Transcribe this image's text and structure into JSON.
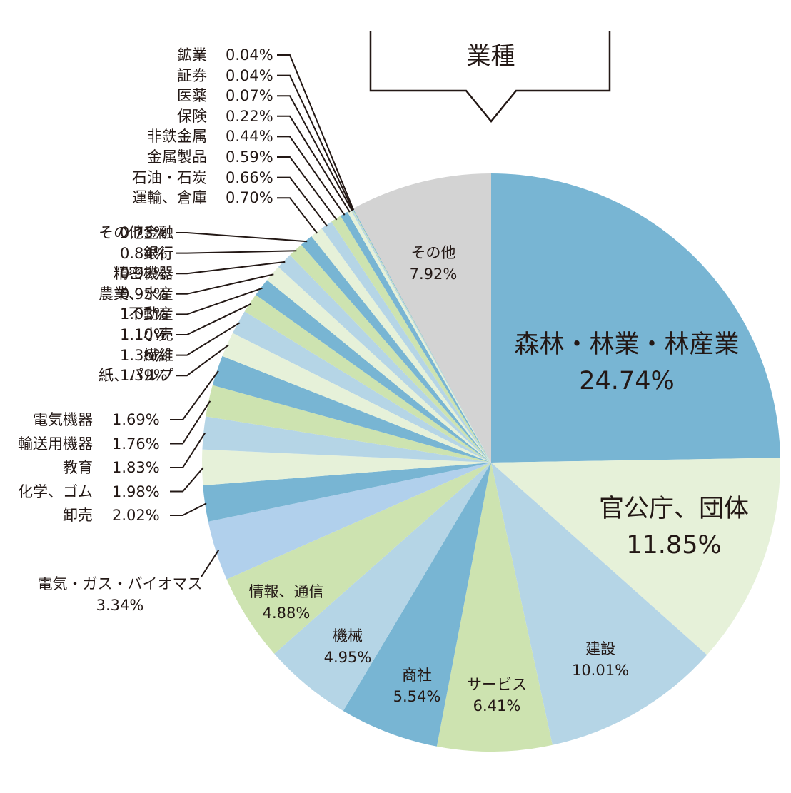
{
  "title": "業種",
  "chart_data": {
    "type": "pie",
    "title": "業種",
    "start_angle_deg": 0,
    "direction": "clockwise",
    "unit": "%",
    "slices": [
      {
        "label": "森林・林業・林産業",
        "value": 24.74,
        "value_text": "24.74%",
        "color": "#78b5d3"
      },
      {
        "label": "官公庁、団体",
        "value": 11.85,
        "value_text": "11.85%",
        "color": "#e6f1d9"
      },
      {
        "label": "建設",
        "value": 10.01,
        "value_text": "10.01%",
        "color": "#b5d5e6"
      },
      {
        "label": "サービス",
        "value": 6.41,
        "value_text": "6.41%",
        "color": "#cde3b0"
      },
      {
        "label": "商社",
        "value": 5.54,
        "value_text": "5.54%",
        "color": "#78b5d3"
      },
      {
        "label": "機械",
        "value": 4.95,
        "value_text": "4.95%",
        "color": "#b5d5e6"
      },
      {
        "label": "情報、通信",
        "value": 4.88,
        "value_text": "4.88%",
        "color": "#cde3b0"
      },
      {
        "label": "電気・ガス・バイオマス",
        "value": 3.34,
        "value_text": "3.34%",
        "color": "#b1d0ec"
      },
      {
        "label": "卸売",
        "value": 2.02,
        "value_text": "2.02%",
        "color": "#78b5d3"
      },
      {
        "label": "化学、ゴム",
        "value": 1.98,
        "value_text": "1.98%",
        "color": "#e6f1d9"
      },
      {
        "label": "教育",
        "value": 1.83,
        "value_text": "1.83%",
        "color": "#b5d5e6"
      },
      {
        "label": "輸送用機器",
        "value": 1.76,
        "value_text": "1.76%",
        "color": "#cde3b0"
      },
      {
        "label": "電気機器",
        "value": 1.69,
        "value_text": "1.69%",
        "color": "#78b5d3"
      },
      {
        "label": "紙、パルプ",
        "value": 1.39,
        "value_text": "1.39%",
        "color": "#e6f1d9"
      },
      {
        "label": "繊維",
        "value": 1.36,
        "value_text": "1.36%",
        "color": "#b5d5e6"
      },
      {
        "label": "小売",
        "value": 1.1,
        "value_text": "1.10%",
        "color": "#cde3b0"
      },
      {
        "label": "不動産",
        "value": 1.03,
        "value_text": "1.03%",
        "color": "#78b5d3"
      },
      {
        "label": "農業、水産",
        "value": 0.95,
        "value_text": "0.95%",
        "color": "#e6f1d9"
      },
      {
        "label": "精密機器",
        "value": 0.92,
        "value_text": "0.92%",
        "color": "#b5d5e6"
      },
      {
        "label": "銀行",
        "value": 0.84,
        "value_text": "0.84%",
        "color": "#cde3b0"
      },
      {
        "label": "その他金融",
        "value": 0.73,
        "value_text": "0.73%",
        "color": "#78b5d3"
      },
      {
        "label": "運輸、倉庫",
        "value": 0.7,
        "value_text": "0.70%",
        "color": "#e6f1d9"
      },
      {
        "label": "石油・石炭",
        "value": 0.66,
        "value_text": "0.66%",
        "color": "#b5d5e6"
      },
      {
        "label": "金属製品",
        "value": 0.59,
        "value_text": "0.59%",
        "color": "#cde3b0"
      },
      {
        "label": "非鉄金属",
        "value": 0.44,
        "value_text": "0.44%",
        "color": "#78b5d3"
      },
      {
        "label": "保険",
        "value": 0.22,
        "value_text": "0.22%",
        "color": "#e6f1d9"
      },
      {
        "label": "医薬",
        "value": 0.07,
        "value_text": "0.07%",
        "color": "#b5d5e6"
      },
      {
        "label": "証券",
        "value": 0.04,
        "value_text": "0.04%",
        "color": "#cde3b0"
      },
      {
        "label": "鉱業",
        "value": 0.04,
        "value_text": "0.04%",
        "color": "#78b5d3"
      },
      {
        "label": "その他",
        "value": 7.92,
        "value_text": "7.92%",
        "color": "#d3d3d3"
      }
    ]
  },
  "inner_labels": [
    {
      "name": "森林・林業・林産業",
      "value": "24.74%"
    },
    {
      "name": "官公庁、団体",
      "value": "11.85%"
    },
    {
      "name": "建設",
      "value": "10.01%"
    },
    {
      "name": "サービス",
      "value": "6.41%"
    },
    {
      "name": "商社",
      "value": "5.54%"
    },
    {
      "name": "機械",
      "value": "4.95%"
    },
    {
      "name": "情報、通信",
      "value": "4.88%"
    },
    {
      "name": "その他",
      "value": "7.92%"
    }
  ],
  "outer_label_ebg": {
    "name": "電気・ガス・バイオマス",
    "value": "3.34%"
  },
  "left_labels_top": [
    {
      "name": "鉱業",
      "value": "0.04%"
    },
    {
      "name": "証券",
      "value": "0.04%"
    },
    {
      "name": "医薬",
      "value": "0.07%"
    },
    {
      "name": "保険",
      "value": "0.22%"
    },
    {
      "name": "非鉄金属",
      "value": "0.44%"
    },
    {
      "name": "金属製品",
      "value": "0.59%"
    },
    {
      "name": "石油・石炭",
      "value": "0.66%"
    },
    {
      "name": "運輸、倉庫",
      "value": "0.70%"
    }
  ],
  "left_labels_mid": [
    {
      "name": "その他金融",
      "value": "0.73%"
    },
    {
      "name": "銀行",
      "value": "0.84%"
    },
    {
      "name": "精密機器",
      "value": "0.92%"
    },
    {
      "name": "農業、水産",
      "value": "0.95%"
    },
    {
      "name": "不動産",
      "value": "1.03%"
    },
    {
      "name": "小売",
      "value": "1.10%"
    },
    {
      "name": "繊維",
      "value": "1.36%"
    },
    {
      "name": "紙、パルプ",
      "value": "1.39%"
    }
  ],
  "left_labels_low": [
    {
      "name": "電気機器",
      "value": "1.69%"
    },
    {
      "name": "輸送用機器",
      "value": "1.76%"
    },
    {
      "name": "教育",
      "value": "1.83%"
    },
    {
      "name": "化学、ゴム",
      "value": "1.98%"
    },
    {
      "name": "卸売",
      "value": "2.02%"
    }
  ]
}
